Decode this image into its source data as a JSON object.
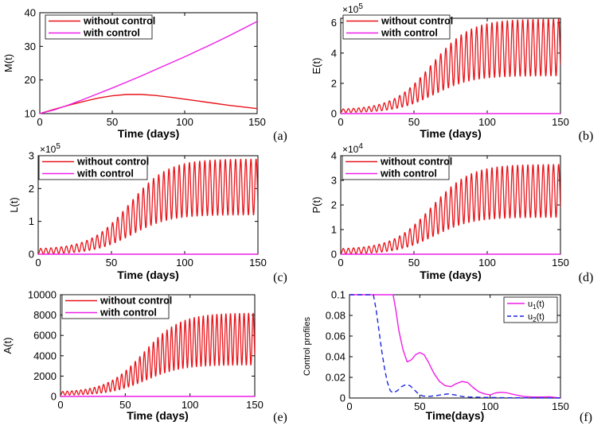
{
  "chart_data": [
    {
      "type": "line",
      "panel_label": "(a)",
      "xlabel": "Time (days)",
      "ylabel": "M(t)",
      "xlim": [
        0,
        150
      ],
      "ylim": [
        10,
        40
      ],
      "xticks": [
        0,
        50,
        100,
        150
      ],
      "yticks": [
        10,
        20,
        30,
        40
      ],
      "xtick_labels": [
        "0",
        "50",
        "100",
        "150"
      ],
      "ytick_labels": [
        "10",
        "20",
        "30",
        "40"
      ],
      "exponent_label": "",
      "series": [
        {
          "name": "without control",
          "color": "#e8141a",
          "x": [
            0,
            10,
            20,
            30,
            40,
            50,
            60,
            70,
            80,
            90,
            100,
            110,
            120,
            130,
            140,
            150
          ],
          "y": [
            10,
            11.3,
            12.5,
            13.6,
            14.6,
            15.3,
            15.7,
            15.7,
            15.4,
            14.9,
            14.3,
            13.7,
            13.1,
            12.5,
            12.0,
            11.5
          ]
        },
        {
          "name": "with control",
          "color": "#ee1ee8",
          "x": [
            0,
            10,
            20,
            30,
            40,
            50,
            60,
            70,
            80,
            90,
            100,
            110,
            120,
            130,
            140,
            150
          ],
          "y": [
            10,
            11.1,
            12.6,
            14.2,
            15.9,
            17.6,
            19.4,
            21.2,
            23.1,
            25.0,
            26.9,
            28.9,
            30.9,
            33.0,
            35.2,
            37.4
          ]
        }
      ]
    },
    {
      "type": "line",
      "panel_label": "(b)",
      "xlabel": "Time (days)",
      "ylabel": "E(t)",
      "xlim": [
        0,
        150
      ],
      "ylim": [
        0,
        6.3
      ],
      "xticks": [
        0,
        50,
        100,
        150
      ],
      "yticks": [
        0,
        2,
        4,
        6
      ],
      "xtick_labels": [
        "0",
        "50",
        "100",
        "150"
      ],
      "ytick_labels": [
        "0",
        "2",
        "4",
        "6"
      ],
      "exponent_label": "×10^5",
      "series": [
        {
          "name": "without control",
          "color": "#e8141a",
          "kind": "oscillation",
          "period": 3.5,
          "upper": {
            "start": 0.25,
            "end": 6.25,
            "mid": 62,
            "width": 13
          },
          "lower": {
            "start": 0.05,
            "end": 2.5,
            "mid": 64,
            "width": 13
          }
        },
        {
          "name": "with control",
          "color": "#ee1ee8",
          "x": [
            0,
            150
          ],
          "y": [
            0,
            0
          ]
        }
      ]
    },
    {
      "type": "line",
      "panel_label": "(c)",
      "xlabel": "Time (days)",
      "ylabel": "L(t)",
      "xlim": [
        0,
        150
      ],
      "ylim": [
        0,
        3
      ],
      "xticks": [
        0,
        50,
        100,
        150
      ],
      "yticks": [
        0,
        1,
        2,
        3
      ],
      "xtick_labels": [
        "0",
        "50",
        "100",
        "150"
      ],
      "ytick_labels": [
        "0",
        "1",
        "2",
        "3"
      ],
      "exponent_label": "×10^5",
      "series": [
        {
          "name": "without  control",
          "color": "#e8141a",
          "kind": "oscillation",
          "period": 3.5,
          "upper": {
            "start": 0.15,
            "end": 2.9,
            "mid": 62,
            "width": 13
          },
          "lower": {
            "start": 0.0,
            "end": 1.2,
            "mid": 64,
            "width": 13
          }
        },
        {
          "name": "with control",
          "color": "#ee1ee8",
          "x": [
            0,
            150
          ],
          "y": [
            0,
            0
          ]
        }
      ]
    },
    {
      "type": "line",
      "panel_label": "(d)",
      "xlabel": "Time (days)",
      "ylabel": "P(t)",
      "xlim": [
        0,
        150
      ],
      "ylim": [
        0,
        4
      ],
      "xticks": [
        0,
        50,
        100,
        150
      ],
      "yticks": [
        0,
        1,
        2,
        3,
        4
      ],
      "xtick_labels": [
        "0",
        "50",
        "100",
        "150"
      ],
      "ytick_labels": [
        "0",
        "1",
        "2",
        "3",
        "4"
      ],
      "exponent_label": "×10^4",
      "series": [
        {
          "name": "without control",
          "color": "#e8141a",
          "kind": "oscillation",
          "period": 3.5,
          "upper": {
            "start": 0.2,
            "end": 3.65,
            "mid": 62,
            "width": 13
          },
          "lower": {
            "start": 0.0,
            "end": 1.5,
            "mid": 64,
            "width": 13
          }
        },
        {
          "name": "with control",
          "color": "#ee1ee8",
          "x": [
            0,
            150
          ],
          "y": [
            0,
            0
          ]
        }
      ]
    },
    {
      "type": "line",
      "panel_label": "(e)",
      "xlabel": "Time (days)",
      "ylabel": "A(t)",
      "xlim": [
        0,
        150
      ],
      "ylim": [
        0,
        10000
      ],
      "xticks": [
        0,
        50,
        100,
        150
      ],
      "yticks": [
        0,
        2000,
        4000,
        6000,
        8000,
        10000
      ],
      "xtick_labels": [
        "0",
        "50",
        "100",
        "150"
      ],
      "ytick_labels": [
        "0",
        "2000",
        "4000",
        "6000",
        "8000",
        "10000"
      ],
      "exponent_label": "",
      "series": [
        {
          "name": "without control",
          "color": "#e8141a",
          "kind": "oscillation",
          "period": 3.5,
          "upper": {
            "start": 400,
            "end": 8200,
            "mid": 64,
            "width": 14
          },
          "lower": {
            "start": 100,
            "end": 3100,
            "mid": 66,
            "width": 14
          }
        },
        {
          "name": "with control",
          "color": "#ee1ee8",
          "x": [
            0,
            150
          ],
          "y": [
            0,
            0
          ]
        }
      ]
    },
    {
      "type": "line",
      "panel_label": "(f)",
      "xlabel": "Time(days)",
      "ylabel": "Control profiles",
      "xlim": [
        0,
        150
      ],
      "ylim": [
        0,
        0.1
      ],
      "xticks": [
        0,
        50,
        100,
        150
      ],
      "yticks": [
        0,
        0.02,
        0.04,
        0.06,
        0.08,
        0.1
      ],
      "xtick_labels": [
        "0",
        "50",
        "100",
        "150"
      ],
      "ytick_labels": [
        "0",
        "0.02",
        "0.04",
        "0.06",
        "0.08",
        "0.1"
      ],
      "exponent_label": "",
      "series": [
        {
          "name": "u1(t)",
          "label_base": "u",
          "label_sub": "1",
          "label_tail": "(t)",
          "color": "#ee1ee8",
          "dash": false,
          "x": [
            0,
            31,
            33,
            35,
            38,
            41,
            44,
            47,
            50,
            53,
            56,
            60,
            64,
            68,
            72,
            76,
            80,
            84,
            88,
            92,
            96,
            100,
            104,
            108,
            112,
            118,
            124,
            130,
            136,
            142,
            146,
            150
          ],
          "y": [
            0.1,
            0.1,
            0.085,
            0.066,
            0.047,
            0.035,
            0.037,
            0.042,
            0.044,
            0.042,
            0.035,
            0.024,
            0.016,
            0.012,
            0.011,
            0.014,
            0.016,
            0.015,
            0.01,
            0.006,
            0.004,
            0.003,
            0.005,
            0.0055,
            0.005,
            0.003,
            0.0015,
            0.001,
            0.001,
            0.0012,
            0.0006,
            0.0
          ]
        },
        {
          "name": "u2(t)",
          "label_base": "u",
          "label_sub": "2",
          "label_tail": "(t)",
          "color": "#1a26e0",
          "dash": true,
          "x": [
            0,
            17,
            19,
            21,
            23,
            25,
            27,
            29,
            31,
            34,
            37,
            40,
            43,
            46,
            49,
            52,
            56,
            60,
            65,
            70,
            75,
            80,
            85,
            90,
            100,
            110,
            120,
            130,
            140,
            150
          ],
          "y": [
            0.1,
            0.1,
            0.085,
            0.065,
            0.045,
            0.028,
            0.015,
            0.007,
            0.005,
            0.007,
            0.011,
            0.013,
            0.012,
            0.008,
            0.004,
            0.002,
            0.0015,
            0.002,
            0.003,
            0.004,
            0.003,
            0.0015,
            0.001,
            0.0008,
            0.0005,
            0.0003,
            0.0002,
            0.0001,
            0.0001,
            0.0
          ]
        }
      ]
    }
  ]
}
